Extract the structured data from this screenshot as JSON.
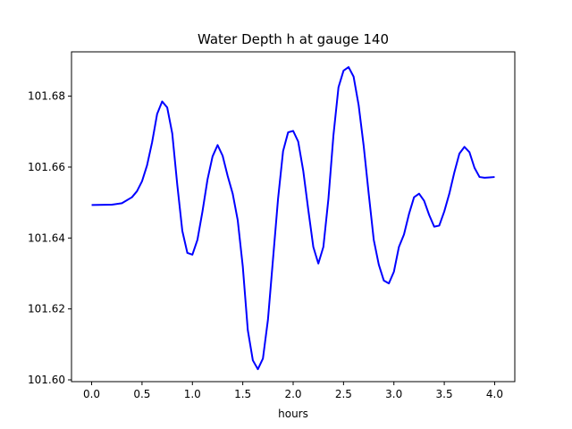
{
  "chart_data": {
    "type": "line",
    "title": "Water Depth h at gauge 140",
    "xlabel": "hours",
    "ylabel": "",
    "xlim": [
      -0.2,
      4.2
    ],
    "ylim": [
      101.5995,
      101.6925
    ],
    "xticks": [
      0.0,
      0.5,
      1.0,
      1.5,
      2.0,
      2.5,
      3.0,
      3.5,
      4.0
    ],
    "xtick_labels": [
      "0.0",
      "0.5",
      "1.0",
      "1.5",
      "2.0",
      "2.5",
      "3.0",
      "3.5",
      "4.0"
    ],
    "yticks": [
      101.6,
      101.62,
      101.64,
      101.66,
      101.68
    ],
    "ytick_labels": [
      "101.60",
      "101.62",
      "101.64",
      "101.66",
      "101.68"
    ],
    "grid": false,
    "series": [
      {
        "color": "#0000ff",
        "x": [
          0.0,
          0.2,
          0.3,
          0.4,
          0.45,
          0.5,
          0.55,
          0.6,
          0.65,
          0.7,
          0.75,
          0.8,
          0.85,
          0.9,
          0.95,
          1.0,
          1.05,
          1.1,
          1.15,
          1.2,
          1.25,
          1.3,
          1.35,
          1.4,
          1.45,
          1.5,
          1.55,
          1.6,
          1.65,
          1.7,
          1.75,
          1.8,
          1.85,
          1.9,
          1.95,
          2.0,
          2.05,
          2.1,
          2.15,
          2.2,
          2.25,
          2.3,
          2.35,
          2.4,
          2.45,
          2.5,
          2.55,
          2.6,
          2.65,
          2.7,
          2.75,
          2.8,
          2.85,
          2.9,
          2.95,
          3.0,
          3.05,
          3.1,
          3.15,
          3.2,
          3.25,
          3.3,
          3.35,
          3.4,
          3.45,
          3.5,
          3.55,
          3.6,
          3.65,
          3.7,
          3.75,
          3.8,
          3.85,
          3.9,
          3.95,
          4.0
        ],
        "y": [
          101.6493,
          101.6494,
          101.6498,
          101.6515,
          101.6532,
          101.656,
          101.6605,
          101.667,
          101.675,
          101.6785,
          101.6768,
          101.6695,
          101.655,
          101.642,
          101.6358,
          101.6353,
          101.6395,
          101.6475,
          101.6565,
          101.663,
          101.6662,
          101.6632,
          101.6575,
          101.6525,
          101.645,
          101.632,
          101.614,
          101.6055,
          101.603,
          101.606,
          101.617,
          101.634,
          101.651,
          101.6645,
          101.6698,
          101.6702,
          101.6672,
          101.659,
          101.648,
          101.6375,
          101.6328,
          101.6375,
          101.651,
          101.669,
          101.6825,
          101.6872,
          101.6882,
          101.6855,
          101.6775,
          101.666,
          101.6525,
          101.6395,
          101.6325,
          101.628,
          101.6272,
          101.6305,
          101.6375,
          101.641,
          101.6468,
          101.6515,
          101.6525,
          101.6505,
          101.6465,
          101.6432,
          101.6435,
          101.6475,
          101.6525,
          101.6585,
          101.6638,
          101.6657,
          101.6642,
          101.6598,
          101.6572,
          101.657,
          101.6571,
          101.6572
        ]
      }
    ]
  }
}
